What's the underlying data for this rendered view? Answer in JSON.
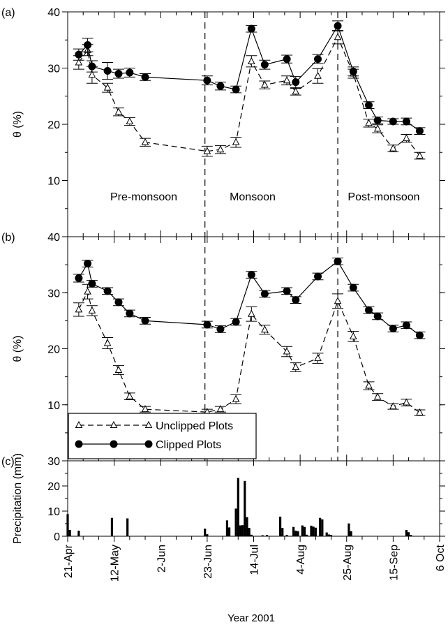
{
  "chart_data": {
    "type": "line",
    "xlabel": "Year 2001",
    "x_tick_labels": [
      "21-Apr",
      "12-May",
      "2-Jun",
      "23-Jun",
      "14-Jul",
      "4-Aug",
      "25-Aug",
      "15-Sep",
      "6 Oct"
    ],
    "x_range_days": [
      0,
      168
    ],
    "x_tick_days": [
      0,
      21,
      42,
      63,
      84,
      105,
      126,
      147,
      168
    ],
    "season_dividers_days": [
      62,
      122
    ],
    "panels": [
      {
        "label": "(a)",
        "ylabel": "θ (%)",
        "ylim": [
          0,
          40
        ],
        "yticks": [
          10,
          20,
          30,
          40
        ],
        "season_labels": [
          "Pre-monsoon",
          "Monsoon",
          "Post-monsoon"
        ],
        "series": [
          {
            "name": "Unclipped Plots",
            "style": "dashed-open-triangle",
            "x": [
              5,
              9,
              11,
              18,
              23,
              28,
              35,
              63,
              69,
              76,
              83,
              89,
              99,
              103,
              113,
              122,
              129,
              136,
              140,
              147,
              153,
              159
            ],
            "y": [
              31.0,
              33.2,
              28.8,
              26.5,
              22.2,
              20.5,
              16.8,
              15.2,
              15.5,
              16.8,
              31.2,
              27.0,
              27.8,
              25.8,
              28.6,
              35.5,
              29.0,
              20.2,
              19.2,
              15.7,
              17.5,
              14.4
            ],
            "err": [
              1.2,
              1.0,
              1.5,
              0.8,
              0.7,
              0.7,
              0.7,
              0.9,
              0.7,
              0.9,
              1.0,
              0.7,
              0.8,
              0.6,
              1.3,
              1.2,
              0.8,
              0.7,
              0.7,
              0.6,
              0.7,
              0.6
            ]
          },
          {
            "name": "Clipped Plots",
            "style": "solid-filled-circle",
            "x": [
              5,
              9,
              11,
              18,
              23,
              28,
              35,
              63,
              69,
              76,
              83,
              89,
              99,
              103,
              113,
              122,
              129,
              136,
              140,
              147,
              153,
              159
            ],
            "y": [
              32.4,
              34.1,
              30.3,
              29.5,
              29.0,
              29.2,
              28.4,
              27.8,
              26.8,
              26.2,
              37.0,
              30.6,
              31.6,
              27.5,
              31.6,
              37.5,
              29.4,
              23.4,
              20.7,
              20.5,
              20.5,
              18.8
            ],
            "err": [
              1.0,
              1.2,
              1.0,
              1.5,
              0.8,
              0.8,
              0.6,
              0.8,
              0.7,
              0.6,
              0.6,
              0.8,
              0.7,
              1.0,
              0.8,
              0.9,
              0.8,
              0.6,
              0.6,
              0.5,
              0.6,
              0.6
            ]
          }
        ]
      },
      {
        "label": "(b)",
        "ylabel": "θ (%)",
        "ylim": [
          0,
          40
        ],
        "yticks": [
          10,
          20,
          30,
          40
        ],
        "series": [
          {
            "name": "Unclipped Plots",
            "style": "dashed-open-triangle",
            "x": [
              5,
              9,
              11,
              18,
              23,
              28,
              35,
              63,
              69,
              76,
              83,
              89,
              99,
              103,
              113,
              122,
              129,
              136,
              140,
              147,
              153,
              159
            ],
            "y": [
              27.0,
              30.2,
              26.8,
              21.0,
              16.2,
              11.5,
              9.2,
              8.7,
              9.2,
              11.0,
              26.2,
              23.4,
              19.5,
              16.7,
              18.3,
              28.5,
              22.2,
              13.4,
              11.4,
              9.7,
              10.4,
              8.6
            ],
            "err": [
              1.2,
              1.3,
              0.9,
              1.0,
              0.8,
              0.6,
              0.5,
              0.5,
              0.5,
              0.8,
              1.3,
              0.8,
              0.9,
              0.8,
              0.9,
              1.3,
              0.9,
              0.7,
              0.6,
              0.5,
              0.6,
              0.5
            ]
          },
          {
            "name": "Clipped Plots",
            "style": "solid-filled-circle",
            "x": [
              5,
              9,
              11,
              18,
              23,
              28,
              35,
              63,
              69,
              76,
              83,
              89,
              99,
              103,
              113,
              122,
              129,
              136,
              140,
              147,
              153,
              159
            ],
            "y": [
              32.6,
              35.2,
              31.6,
              30.3,
              28.3,
              26.3,
              25.0,
              24.3,
              23.5,
              24.8,
              33.2,
              29.8,
              30.3,
              28.7,
              32.9,
              35.6,
              30.9,
              26.9,
              25.8,
              23.6,
              24.2,
              22.4
            ],
            "err": [
              0.7,
              0.6,
              0.6,
              0.6,
              0.6,
              0.6,
              0.6,
              0.6,
              0.6,
              0.6,
              0.6,
              0.6,
              0.6,
              0.6,
              0.6,
              0.6,
              0.6,
              0.6,
              0.6,
              0.6,
              0.6,
              0.6
            ]
          }
        ],
        "legend": {
          "placement": "bottom-left",
          "entries": [
            "Unclipped Plots",
            "Clipped Plots"
          ]
        }
      },
      {
        "label": "(c)",
        "type": "bar",
        "ylabel": "Precipitation (mm)",
        "ylim": [
          0,
          30
        ],
        "yticks": [
          0,
          10,
          20,
          30
        ],
        "bars": {
          "x": [
            0,
            1,
            5,
            20,
            27,
            62,
            63,
            72,
            73,
            76,
            77,
            78,
            79,
            80,
            81,
            82,
            83,
            88,
            90,
            96,
            97,
            99,
            102,
            103,
            104,
            106,
            107,
            108,
            110,
            111,
            112,
            114,
            115,
            117,
            118,
            119,
            127,
            128,
            153,
            154,
            155
          ],
          "y": [
            8.8,
            2.5,
            2.2,
            7.3,
            7.1,
            3.0,
            0.8,
            6.3,
            3.5,
            11.0,
            23.2,
            4.3,
            4.4,
            22.0,
            7.6,
            3.3,
            0.6,
            0.4,
            0.5,
            7.8,
            3.3,
            0.5,
            3.7,
            2.2,
            2.0,
            4.3,
            3.7,
            0.6,
            4.2,
            3.8,
            3.4,
            7.3,
            6.7,
            1.5,
            0.7,
            0.5,
            5.1,
            2.0,
            2.5,
            1.6,
            0.5
          ]
        }
      }
    ]
  }
}
